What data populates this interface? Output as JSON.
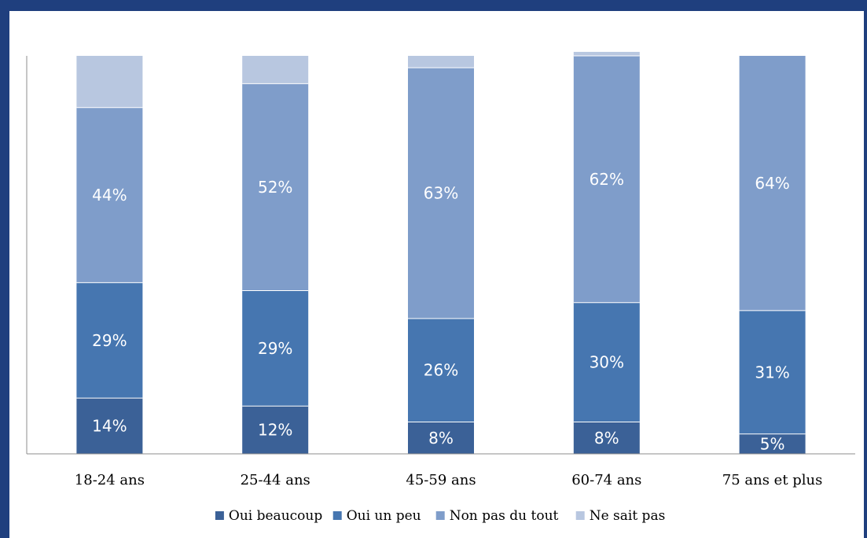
{
  "chart_data": {
    "type": "bar",
    "stacked": true,
    "categories": [
      "18-24 ans",
      "25-44 ans",
      "45-59 ans",
      "60-74 ans",
      "75 ans et plus"
    ],
    "series": [
      {
        "name": "Oui beaucoup",
        "values": [
          14,
          12,
          8,
          8,
          5
        ],
        "labels": [
          "14%",
          "12%",
          "8%",
          "8%",
          "5%"
        ],
        "color": "#3b6197"
      },
      {
        "name": "Oui un peu",
        "values": [
          29,
          29,
          26,
          30,
          31
        ],
        "labels": [
          "29%",
          "29%",
          "26%",
          "30%",
          "31%"
        ],
        "color": "#4676b0"
      },
      {
        "name": "Non pas du tout",
        "values": [
          44,
          52,
          63,
          62,
          64
        ],
        "labels": [
          "44%",
          "52%",
          "63%",
          "62%",
          "64%"
        ],
        "color": "#7f9dca"
      },
      {
        "name": "Ne sait pas",
        "values": [
          13,
          7,
          3,
          1,
          0
        ],
        "labels": [
          "",
          "",
          "",
          "",
          ""
        ],
        "color": "#b8c7e0"
      }
    ],
    "ylim": [
      0,
      100
    ],
    "legend": "bottom",
    "grid": false,
    "title": "",
    "xlabel": "",
    "ylabel": ""
  }
}
